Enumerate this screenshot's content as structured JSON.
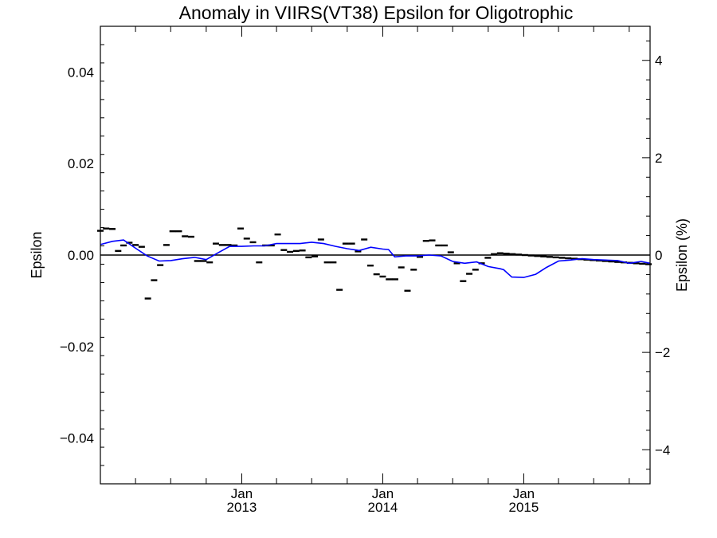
{
  "chart_data": {
    "type": "scatter",
    "title": "Anomaly in VIIRS(VT38) Epsilon for Oligotrophic",
    "ylabel": "Epsilon",
    "y2label": "Epsilon (%)",
    "xlim": [
      "2012-01-01",
      "2015-11-24"
    ],
    "ylim": [
      -0.05,
      0.05
    ],
    "y2lim": [
      -4.7,
      4.7
    ],
    "x_ticks": [
      {
        "month": "Jan",
        "year": "2013",
        "date": "2013-01-01"
      },
      {
        "month": "Jan",
        "year": "2014",
        "date": "2014-01-01"
      },
      {
        "month": "Jan",
        "year": "2015",
        "date": "2015-01-01"
      }
    ],
    "y_ticks": [
      {
        "value": 0.04,
        "label": "0.04"
      },
      {
        "value": 0.02,
        "label": "0.02"
      },
      {
        "value": 0.0,
        "label": "0.00"
      },
      {
        "value": -0.02,
        "label": "−0.02"
      },
      {
        "value": -0.04,
        "label": "−0.04"
      }
    ],
    "y2_ticks": [
      {
        "value": 4,
        "label": "4"
      },
      {
        "value": 2,
        "label": "2"
      },
      {
        "value": 0,
        "label": "0"
      },
      {
        "value": -2,
        "label": "−2"
      },
      {
        "value": -4,
        "label": "−4"
      }
    ],
    "reference_line": 0,
    "series": [
      {
        "type": "scatter",
        "marker": "dash",
        "color": "#000000",
        "x": [
          "2012-01-01",
          "2012-01-16",
          "2012-02-01",
          "2012-02-16",
          "2012-03-01",
          "2012-03-16",
          "2012-04-01",
          "2012-04-17",
          "2012-05-03",
          "2012-05-19",
          "2012-06-04",
          "2012-06-20",
          "2012-07-06",
          "2012-07-22",
          "2012-08-07",
          "2012-08-23",
          "2012-09-08",
          "2012-09-24",
          "2012-10-10",
          "2012-10-26",
          "2012-11-11",
          "2012-11-27",
          "2012-12-13",
          "2012-12-29",
          "2013-01-14",
          "2013-01-30",
          "2013-02-15",
          "2013-03-03",
          "2013-03-19",
          "2013-04-04",
          "2013-04-20",
          "2013-05-06",
          "2013-05-22",
          "2013-06-07",
          "2013-06-23",
          "2013-07-09",
          "2013-07-25",
          "2013-08-10",
          "2013-08-26",
          "2013-09-11",
          "2013-09-27",
          "2013-10-13",
          "2013-10-29",
          "2013-11-14",
          "2013-11-30",
          "2013-12-16",
          "2014-01-01",
          "2014-01-17",
          "2014-02-02",
          "2014-02-18",
          "2014-03-06",
          "2014-03-22",
          "2014-04-07",
          "2014-04-23",
          "2014-05-09",
          "2014-05-25",
          "2014-06-10",
          "2014-06-26",
          "2014-07-12",
          "2014-07-28",
          "2014-08-13",
          "2014-08-29",
          "2014-09-14",
          "2014-09-30",
          "2014-10-16",
          "2014-11-01",
          "2014-11-17",
          "2014-12-03",
          "2014-12-19",
          "2015-01-04",
          "2015-01-20",
          "2015-02-05",
          "2015-02-21",
          "2015-03-09",
          "2015-03-25",
          "2015-04-10",
          "2015-04-26",
          "2015-05-12",
          "2015-05-28",
          "2015-06-13",
          "2015-06-29",
          "2015-07-15",
          "2015-07-31",
          "2015-08-16",
          "2015-09-01",
          "2015-09-17",
          "2015-10-03",
          "2015-10-19",
          "2015-11-04",
          "2015-11-20"
        ],
        "y": [
          0.0053,
          0.0058,
          0.0057,
          0.0009,
          0.0021,
          0.0027,
          0.0022,
          0.0018,
          -0.0095,
          -0.0055,
          -0.0022,
          0.0022,
          0.0052,
          0.0052,
          0.0041,
          0.004,
          -0.0013,
          -0.0013,
          -0.0016,
          0.0025,
          0.0022,
          0.0022,
          0.0021,
          0.0058,
          0.0036,
          0.0028,
          -0.0016,
          0.0021,
          0.0021,
          0.0045,
          0.0011,
          0.0007,
          0.0009,
          0.001,
          -0.0005,
          -0.0003,
          0.0034,
          -0.0016,
          -0.0016,
          -0.0076,
          0.0025,
          0.0025,
          0.0008,
          0.0034,
          -0.0023,
          -0.0042,
          -0.0047,
          -0.0053,
          -0.0053,
          -0.0027,
          -0.0078,
          -0.0032,
          -0.0004,
          0.0031,
          0.0032,
          0.0021,
          0.0021,
          0.0006,
          -0.0018,
          -0.0057,
          -0.0041,
          -0.0032,
          -0.0018,
          -0.0006,
          0.0002,
          0.0004,
          0.0003,
          0.0002,
          0.0001,
          0.0,
          -0.0001,
          -0.0002,
          -0.0003,
          -0.0004,
          -0.0005,
          -0.0006,
          -0.0007,
          -0.0008,
          -0.0009,
          -0.001,
          -0.0011,
          -0.0012,
          -0.0013,
          -0.0014,
          -0.0015,
          -0.0016,
          -0.0017,
          -0.0018,
          -0.0019,
          -0.002
        ]
      },
      {
        "type": "line",
        "color": "#0000ff",
        "x": [
          "2012-01-01",
          "2012-02-01",
          "2012-03-01",
          "2012-04-01",
          "2012-05-01",
          "2012-06-01",
          "2012-07-01",
          "2012-08-01",
          "2012-09-01",
          "2012-10-01",
          "2012-11-01",
          "2012-12-01",
          "2013-01-01",
          "2013-02-01",
          "2013-03-01",
          "2013-04-01",
          "2013-05-01",
          "2013-06-01",
          "2013-07-01",
          "2013-08-01",
          "2013-09-01",
          "2013-10-01",
          "2013-11-01",
          "2013-12-01",
          "2014-01-01",
          "2014-01-16",
          "2014-02-01",
          "2014-03-01",
          "2014-04-01",
          "2014-05-01",
          "2014-06-01",
          "2014-07-01",
          "2014-08-01",
          "2014-09-01",
          "2014-10-01",
          "2014-11-01",
          "2014-11-10",
          "2014-12-01",
          "2015-01-01",
          "2015-02-01",
          "2015-03-01",
          "2015-04-01",
          "2015-05-01",
          "2015-06-01",
          "2015-07-01",
          "2015-08-01",
          "2015-09-01",
          "2015-10-01",
          "2015-11-01",
          "2015-11-24"
        ],
        "y": [
          0.0023,
          0.003,
          0.0033,
          0.0015,
          -0.0002,
          -0.0013,
          -0.0012,
          -0.0008,
          -0.0005,
          -0.001,
          0.0005,
          0.0019,
          0.0019,
          0.002,
          0.002,
          0.0025,
          0.0025,
          0.0025,
          0.0028,
          0.0025,
          0.0019,
          0.0014,
          0.001,
          0.0017,
          0.0013,
          0.0012,
          -0.0004,
          -0.0002,
          -0.0002,
          0.0,
          -0.0002,
          -0.0014,
          -0.0018,
          -0.0015,
          -0.0025,
          -0.003,
          -0.0032,
          -0.0048,
          -0.0049,
          -0.0042,
          -0.0027,
          -0.0013,
          -0.0011,
          -0.0008,
          -0.001,
          -0.0011,
          -0.0012,
          -0.0018,
          -0.0014,
          -0.0018
        ]
      }
    ]
  }
}
